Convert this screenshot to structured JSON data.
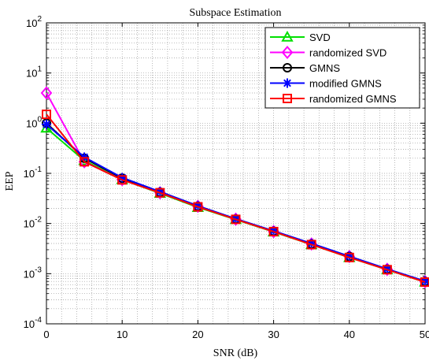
{
  "chart_data": {
    "type": "line",
    "title": "Subspace Estimation",
    "xlabel": "SNR (dB)",
    "ylabel": "EEP",
    "x": [
      0,
      5,
      10,
      15,
      20,
      25,
      30,
      35,
      40,
      45,
      50
    ],
    "xlim": [
      0,
      50
    ],
    "ylim": [
      0.0001,
      100
    ],
    "yscale": "log",
    "xticks": [
      0,
      10,
      20,
      30,
      40,
      50
    ],
    "yticks": [
      {
        "value": 0.0001,
        "base": "10",
        "exp": "-4"
      },
      {
        "value": 0.001,
        "base": "10",
        "exp": "-3"
      },
      {
        "value": 0.01,
        "base": "10",
        "exp": "-2"
      },
      {
        "value": 0.1,
        "base": "10",
        "exp": "-1"
      },
      {
        "value": 1,
        "base": "10",
        "exp": "0"
      },
      {
        "value": 10,
        "base": "10",
        "exp": "1"
      },
      {
        "value": 100,
        "base": "10",
        "exp": "2"
      }
    ],
    "grid": true,
    "grid_style": "dotted",
    "legend_position": "top-right",
    "series": [
      {
        "name": "SVD",
        "color": "#00e000",
        "marker": "triangle",
        "values": [
          0.8,
          0.18,
          0.075,
          0.04,
          0.021,
          0.012,
          0.0068,
          0.0038,
          0.0021,
          0.0012,
          0.00068
        ]
      },
      {
        "name": "randomized SVD",
        "color": "#ff00ff",
        "marker": "diamond",
        "values": [
          4.0,
          0.17,
          0.075,
          0.041,
          0.022,
          0.0122,
          0.0069,
          0.0039,
          0.0022,
          0.00122,
          0.00069
        ]
      },
      {
        "name": "GMNS",
        "color": "#000000",
        "marker": "circle",
        "values": [
          1.0,
          0.2,
          0.08,
          0.042,
          0.022,
          0.0123,
          0.007,
          0.0039,
          0.0022,
          0.00123,
          0.0007
        ]
      },
      {
        "name": "modified GMNS",
        "color": "#0000ff",
        "marker": "asterisk",
        "values": [
          0.95,
          0.21,
          0.082,
          0.043,
          0.0225,
          0.0124,
          0.0071,
          0.004,
          0.00222,
          0.00124,
          0.00071
        ]
      },
      {
        "name": "randomized GMNS",
        "color": "#ff0000",
        "marker": "square",
        "values": [
          1.5,
          0.17,
          0.074,
          0.041,
          0.0215,
          0.0121,
          0.0069,
          0.0038,
          0.0021,
          0.0012,
          0.00068
        ]
      }
    ]
  }
}
